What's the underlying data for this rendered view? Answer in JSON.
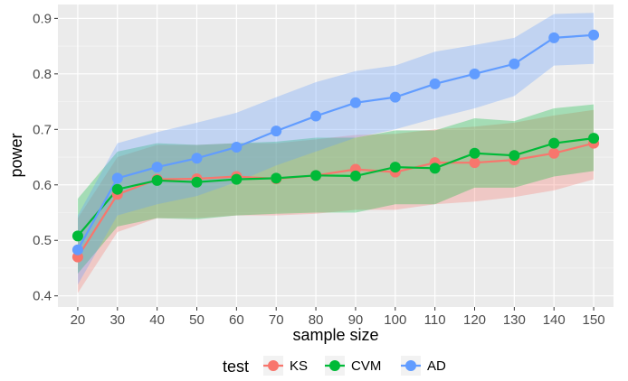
{
  "chart_data": {
    "type": "line",
    "title": "",
    "xlabel": "sample size",
    "ylabel": "power",
    "x": [
      20,
      30,
      40,
      50,
      60,
      70,
      80,
      90,
      100,
      110,
      120,
      130,
      140,
      150
    ],
    "xlim": [
      15,
      155
    ],
    "ylim": [
      0.38,
      0.925
    ],
    "yticks": [
      0.4,
      0.5,
      0.6,
      0.7,
      0.8,
      0.9
    ],
    "ytick_labels": [
      "0.4",
      "0.5",
      "0.6",
      "0.7",
      "0.8",
      "0.9"
    ],
    "xtick_labels": [
      "20",
      "30",
      "40",
      "50",
      "60",
      "70",
      "80",
      "90",
      "100",
      "110",
      "120",
      "130",
      "140",
      "150"
    ],
    "grid": true,
    "background": "#ebebeb",
    "legend": {
      "title": "test",
      "position": "bottom"
    },
    "series": [
      {
        "name": "KS",
        "color": "#f8766d",
        "values": [
          0.47,
          0.583,
          0.61,
          0.611,
          0.615,
          0.611,
          0.617,
          0.628,
          0.623,
          0.64,
          0.64,
          0.645,
          0.657,
          0.675
        ],
        "lower": [
          0.405,
          0.515,
          0.54,
          0.54,
          0.545,
          0.545,
          0.548,
          0.555,
          0.555,
          0.565,
          0.57,
          0.578,
          0.59,
          0.61
        ],
        "upper": [
          0.54,
          0.65,
          0.672,
          0.672,
          0.675,
          0.675,
          0.682,
          0.69,
          0.692,
          0.7,
          0.705,
          0.712,
          0.725,
          0.735
        ]
      },
      {
        "name": "CVM",
        "color": "#00ba38",
        "values": [
          0.508,
          0.592,
          0.608,
          0.605,
          0.61,
          0.612,
          0.617,
          0.616,
          0.632,
          0.63,
          0.657,
          0.653,
          0.675,
          0.684
        ],
        "lower": [
          0.44,
          0.525,
          0.54,
          0.538,
          0.545,
          0.548,
          0.55,
          0.55,
          0.565,
          0.565,
          0.595,
          0.595,
          0.615,
          0.625
        ],
        "upper": [
          0.575,
          0.66,
          0.675,
          0.672,
          0.675,
          0.678,
          0.685,
          0.685,
          0.698,
          0.698,
          0.72,
          0.715,
          0.738,
          0.745
        ]
      },
      {
        "name": "AD",
        "color": "#619cff",
        "values": [
          0.483,
          0.612,
          0.632,
          0.648,
          0.668,
          0.697,
          0.724,
          0.748,
          0.758,
          0.782,
          0.8,
          0.818,
          0.865,
          0.87
        ],
        "lower": [
          0.42,
          0.545,
          0.565,
          0.58,
          0.605,
          0.635,
          0.66,
          0.685,
          0.7,
          0.72,
          0.738,
          0.76,
          0.815,
          0.818
        ],
        "upper": [
          0.545,
          0.675,
          0.695,
          0.712,
          0.73,
          0.758,
          0.785,
          0.805,
          0.815,
          0.84,
          0.852,
          0.865,
          0.908,
          0.91
        ]
      }
    ]
  }
}
